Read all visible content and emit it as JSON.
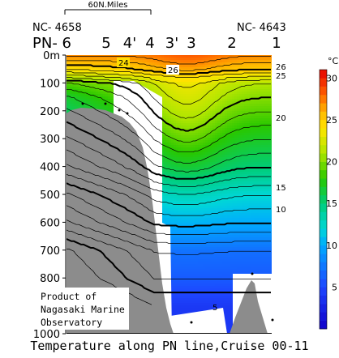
{
  "chart_data": {
    "type": "heatmap",
    "title": "Temperature along PN line,Cruise 00-11",
    "scale_bar_label": "60N.Miles",
    "section_endpoints": {
      "left": "NC- 4658",
      "right": "NC- 4643"
    },
    "station_prefix": "PN- 6",
    "stations": [
      "5",
      "4'",
      "4",
      "3'",
      "3",
      "2",
      "1"
    ],
    "y_axis": {
      "ticks": [
        "0m",
        "100",
        "200",
        "300",
        "400",
        "500",
        "600",
        "700",
        "800",
        "900",
        "1000"
      ],
      "ylim": [
        0,
        1000
      ]
    },
    "colorbar": {
      "unit": "°C",
      "ticks": [
        "30",
        "25",
        "20",
        "15",
        "10",
        "5"
      ],
      "range": [
        0,
        31
      ]
    },
    "contour_labels": [
      "24",
      "26",
      "26",
      "25",
      "20",
      "15",
      "10",
      "5"
    ],
    "annotation": [
      "Product of",
      "Nagasaki Marine",
      "Observatory"
    ],
    "approx_temperature_profile": {
      "depth_m": [
        0,
        25,
        50,
        100,
        150,
        200,
        300,
        400,
        500,
        600,
        700,
        800,
        900
      ],
      "offshore_temp_c": [
        27,
        26,
        25,
        21,
        20,
        19,
        17,
        15,
        12,
        10,
        7,
        6,
        4
      ]
    }
  }
}
